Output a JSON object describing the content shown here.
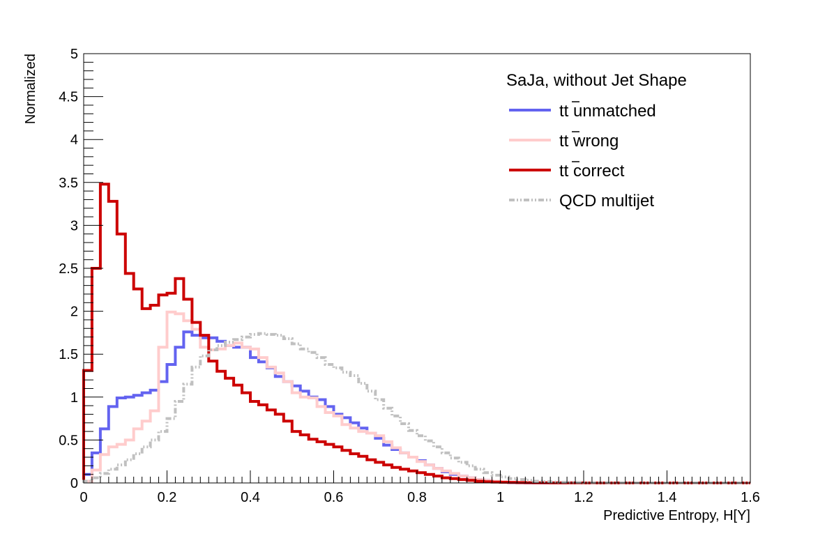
{
  "chart_data": {
    "type": "line",
    "step": true,
    "xlabel": "Predictive Entropy, H[Y]",
    "ylabel": "Normalized",
    "xlim": [
      0,
      1.6
    ],
    "ylim": [
      0,
      5
    ],
    "bin_width": 0.02,
    "x_ticks": [
      "0",
      "0.2",
      "0.4",
      "0.6",
      "0.8",
      "1",
      "1.2",
      "1.4",
      "1.6"
    ],
    "y_ticks": [
      "0",
      "0.5",
      "1",
      "1.5",
      "2",
      "2.5",
      "3",
      "3.5",
      "4",
      "4.5",
      "5"
    ],
    "legend_title": "SaJa, without Jet Shape",
    "legend_position": "top-right",
    "series": [
      {
        "name": "tt̄ unmatched",
        "legend_main": "tt",
        "legend_rest": " unmatched",
        "color": "#6363f0",
        "dash": "solid",
        "values": [
          0.1,
          0.35,
          0.63,
          0.89,
          0.99,
          1.0,
          1.02,
          1.05,
          1.08,
          1.18,
          1.38,
          1.58,
          1.76,
          1.72,
          1.69,
          1.69,
          1.65,
          1.6,
          1.58,
          1.58,
          1.46,
          1.41,
          1.34,
          1.24,
          1.18,
          1.13,
          1.07,
          1.0,
          0.97,
          0.89,
          0.8,
          0.76,
          0.7,
          0.64,
          0.58,
          0.52,
          0.44,
          0.39,
          0.35,
          0.3,
          0.26,
          0.21,
          0.17,
          0.13,
          0.1,
          0.08,
          0.06,
          0.04,
          0.03,
          0.02,
          0.01,
          0.005,
          0.003,
          0.002,
          0.002,
          0.001,
          0.001,
          0.001,
          0.001,
          0.0,
          0.0,
          0.0,
          0.0,
          0.0,
          0.0,
          0.0,
          0.0,
          0.0,
          0.0,
          0.0,
          0.0,
          0.0,
          0.0,
          0.0,
          0.0,
          0.0,
          0.0,
          0.0,
          0.0,
          0.0
        ]
      },
      {
        "name": "tt̄ wrong",
        "legend_main": "tt",
        "legend_rest": " wrong",
        "color": "#ffcccc",
        "dash": "solid",
        "values": [
          0.02,
          0.15,
          0.33,
          0.42,
          0.45,
          0.5,
          0.63,
          0.72,
          0.84,
          1.58,
          1.99,
          1.97,
          1.89,
          1.79,
          1.58,
          1.55,
          1.56,
          1.6,
          1.63,
          1.58,
          1.56,
          1.46,
          1.35,
          1.28,
          1.18,
          1.05,
          1.0,
          0.99,
          0.89,
          0.82,
          0.78,
          0.68,
          0.64,
          0.6,
          0.58,
          0.55,
          0.48,
          0.41,
          0.35,
          0.3,
          0.25,
          0.21,
          0.17,
          0.14,
          0.11,
          0.08,
          0.06,
          0.04,
          0.03,
          0.02,
          0.015,
          0.01,
          0.008,
          0.006,
          0.004,
          0.003,
          0.002,
          0.002,
          0.001,
          0.001,
          0.0,
          0.0,
          0.0,
          0.0,
          0.0,
          0.0,
          0.0,
          0.0,
          0.0,
          0.0,
          0.0,
          0.0,
          0.0,
          0.0,
          0.0,
          0.0,
          0.0,
          0.0,
          0.0,
          0.0
        ]
      },
      {
        "name": "tt̄ correct",
        "legend_main": "tt",
        "legend_rest": " correct",
        "color": "#cc0000",
        "dash": "solid",
        "values": [
          1.31,
          2.5,
          3.48,
          3.28,
          2.9,
          2.44,
          2.26,
          2.03,
          2.07,
          2.19,
          2.21,
          2.38,
          2.14,
          1.87,
          1.72,
          1.42,
          1.3,
          1.22,
          1.14,
          1.05,
          0.95,
          0.91,
          0.85,
          0.8,
          0.72,
          0.6,
          0.56,
          0.51,
          0.48,
          0.45,
          0.42,
          0.38,
          0.34,
          0.31,
          0.27,
          0.24,
          0.21,
          0.18,
          0.16,
          0.14,
          0.12,
          0.1,
          0.08,
          0.06,
          0.05,
          0.04,
          0.03,
          0.02,
          0.015,
          0.01,
          0.008,
          0.006,
          0.004,
          0.003,
          0.002,
          0.002,
          0.001,
          0.001,
          0.001,
          0.0,
          0.0,
          0.0,
          0.0,
          0.0,
          0.0,
          0.0,
          0.0,
          0.0,
          0.0,
          0.0,
          0.0,
          0.0,
          0.0,
          0.0,
          0.0,
          0.0,
          0.0,
          0.0,
          0.0,
          0.0
        ]
      },
      {
        "name": "QCD multijet",
        "legend_main": "QCD multijet",
        "legend_rest": "",
        "color": "#c0c0c0",
        "dash": "dashdot",
        "values": [
          0.02,
          0.06,
          0.11,
          0.16,
          0.21,
          0.27,
          0.34,
          0.42,
          0.5,
          0.6,
          0.75,
          0.95,
          1.15,
          1.35,
          1.48,
          1.55,
          1.6,
          1.64,
          1.67,
          1.7,
          1.73,
          1.74,
          1.73,
          1.72,
          1.68,
          1.62,
          1.56,
          1.52,
          1.46,
          1.38,
          1.34,
          1.29,
          1.25,
          1.16,
          1.07,
          0.97,
          0.87,
          0.78,
          0.69,
          0.61,
          0.55,
          0.49,
          0.42,
          0.35,
          0.29,
          0.24,
          0.2,
          0.16,
          0.12,
          0.09,
          0.07,
          0.05,
          0.04,
          0.03,
          0.02,
          0.015,
          0.01,
          0.008,
          0.006,
          0.005,
          0.004,
          0.003,
          0.003,
          0.002,
          0.002,
          0.002,
          0.001,
          0.001,
          0.001,
          0.001,
          0.001,
          0.001,
          0.001,
          0.001,
          0.001,
          0.001,
          0.001,
          0.001,
          0.001,
          0.001
        ]
      }
    ]
  }
}
